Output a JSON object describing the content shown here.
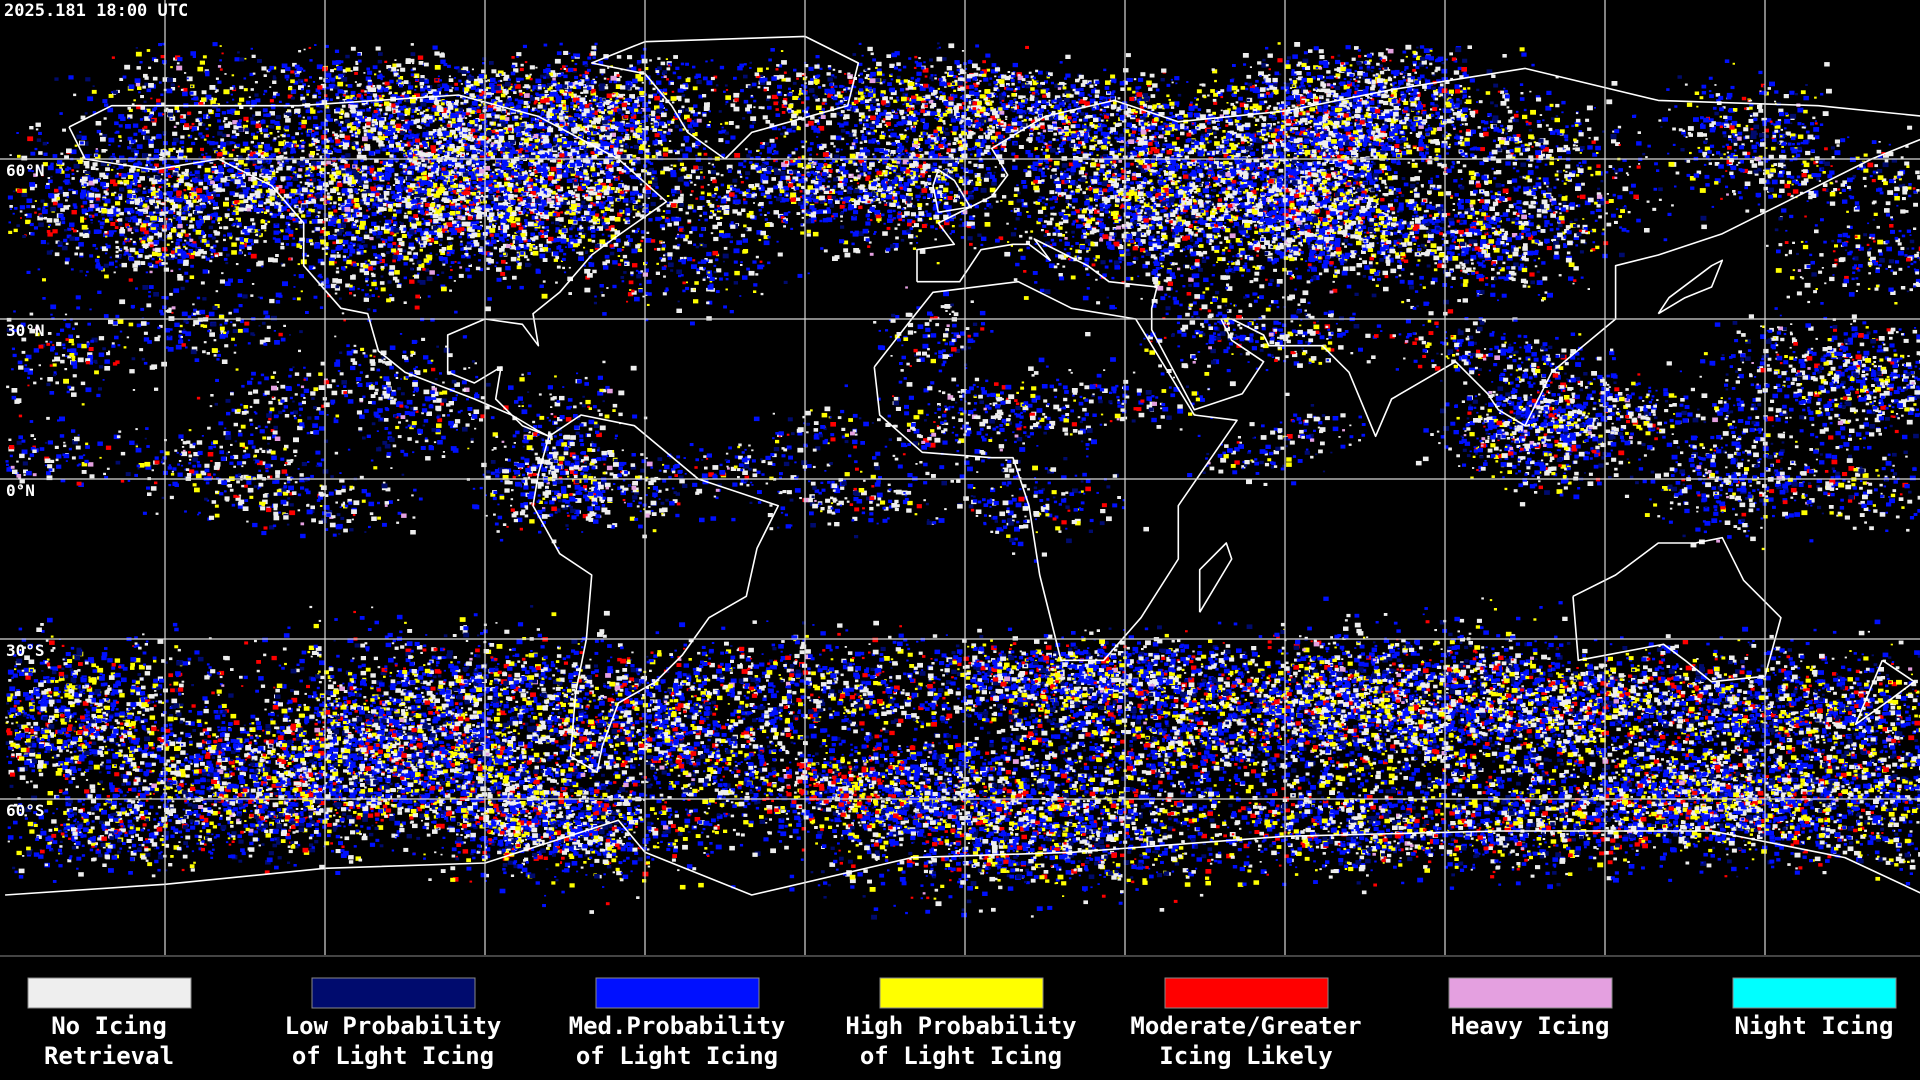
{
  "timestamp": "2025.181 18:00 UTC",
  "latitude_labels": [
    "60°N",
    "30°N",
    "0°N",
    "30°S",
    "60°S"
  ],
  "legend": [
    {
      "label": [
        "No Icing",
        "Retrieval"
      ],
      "color": "#eeeeee"
    },
    {
      "label": [
        "Low Probability",
        "of Light Icing"
      ],
      "color": "#000b6e"
    },
    {
      "label": [
        "Med.Probability",
        "of Light Icing"
      ],
      "color": "#0010ff"
    },
    {
      "label": [
        "High Probability",
        "of Light Icing"
      ],
      "color": "#ffff00"
    },
    {
      "label": [
        "Moderate/Greater",
        "Icing Likely"
      ],
      "color": "#ff0000"
    },
    {
      "label": [
        "Heavy Icing"
      ],
      "color": "#e4a0e0"
    },
    {
      "label": [
        "Night Icing"
      ],
      "color": "#00ffff"
    }
  ]
}
